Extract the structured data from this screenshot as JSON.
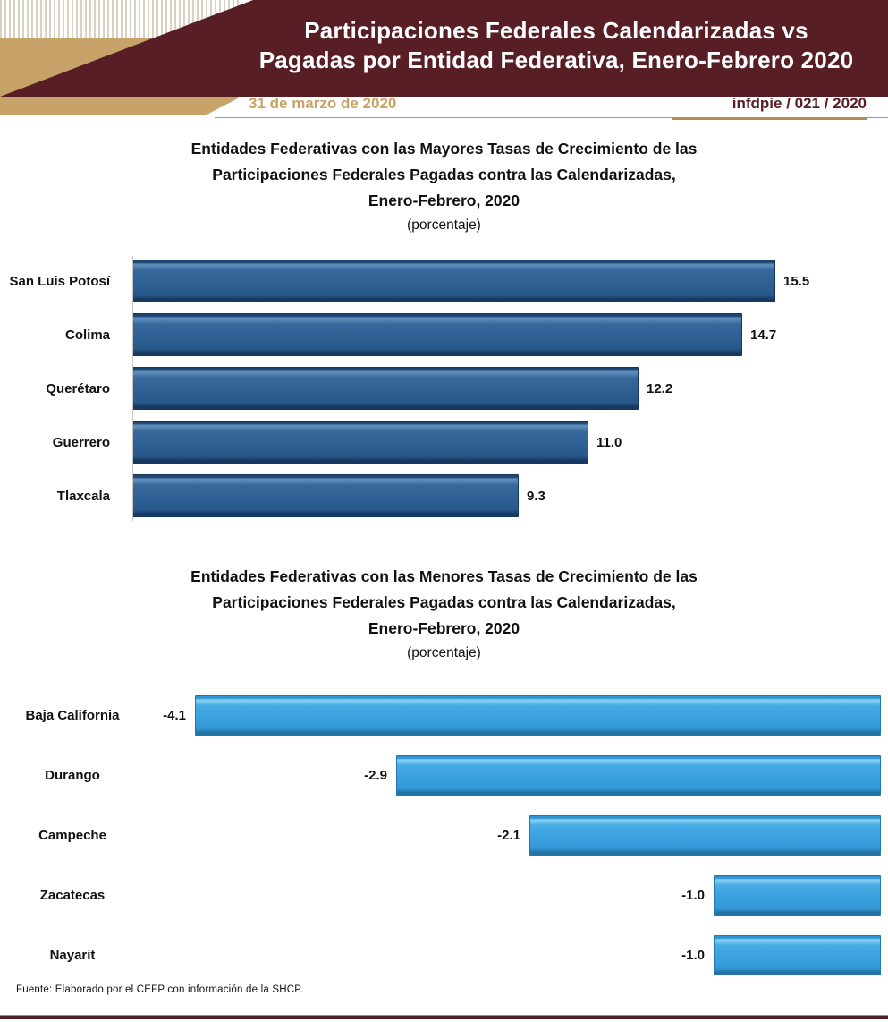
{
  "header": {
    "title_line1": "Participaciones Federales Calendarizadas vs",
    "title_line2": "Pagadas por Entidad Federativa, Enero-Febrero 2020",
    "date": "31 de marzo de 2020",
    "doc_id": "infdpie / 021 / 2020",
    "colors": {
      "maroon": "#571e26",
      "tan": "#c8a369"
    }
  },
  "section1": {
    "title_line1": "Entidades Federativas con las Mayores Tasas de Crecimiento de las",
    "title_line2": "Participaciones Federales Pagadas contra las Calendarizadas,",
    "title_line3": "Enero-Febrero, 2020",
    "subtitle": "(porcentaje)"
  },
  "section2": {
    "title_line1": "Entidades Federativas con las Menores Tasas de Crecimiento de las",
    "title_line2": "Participaciones Federales Pagadas contra las Calendarizadas,",
    "title_line3": "Enero-Febrero, 2020",
    "subtitle": "(porcentaje)"
  },
  "chart_data": [
    {
      "type": "bar",
      "orientation": "horizontal",
      "anchor": "left",
      "title": "Entidades Federativas con las Mayores Tasas de Crecimiento de las Participaciones Federales Pagadas contra las Calendarizadas, Enero-Febrero, 2020",
      "subtitle": "(porcentaje)",
      "categories": [
        "San Luis Potosí",
        "Colima",
        "Querétaro",
        "Guerrero",
        "Tlaxcala"
      ],
      "values": [
        15.5,
        14.7,
        12.2,
        11.0,
        9.3
      ],
      "value_labels": [
        "15.5",
        "14.7",
        "12.2",
        "11.0",
        "9.3"
      ],
      "bar_color": "#2e6093",
      "value_axis_visible": false,
      "grid": false,
      "legend": false
    },
    {
      "type": "bar",
      "orientation": "horizontal",
      "anchor": "right",
      "title": "Entidades Federativas con las Menores Tasas de Crecimiento de las Participaciones Federales Pagadas contra las Calendarizadas, Enero-Febrero, 2020",
      "subtitle": "(porcentaje)",
      "categories": [
        "Baja California",
        "Durango",
        "Campeche",
        "Zacatecas",
        "Nayarit"
      ],
      "values": [
        -4.1,
        -2.9,
        -2.1,
        -1.0,
        -1.0
      ],
      "value_labels": [
        "-4.1",
        "-2.9",
        "-2.1",
        "-1.0",
        "-1.0"
      ],
      "bar_color": "#3aa0de",
      "value_axis_visible": false,
      "grid": false,
      "legend": false
    }
  ],
  "footer": {
    "source": "Fuente: Elaborado por el CEFP con información de la SHCP."
  }
}
